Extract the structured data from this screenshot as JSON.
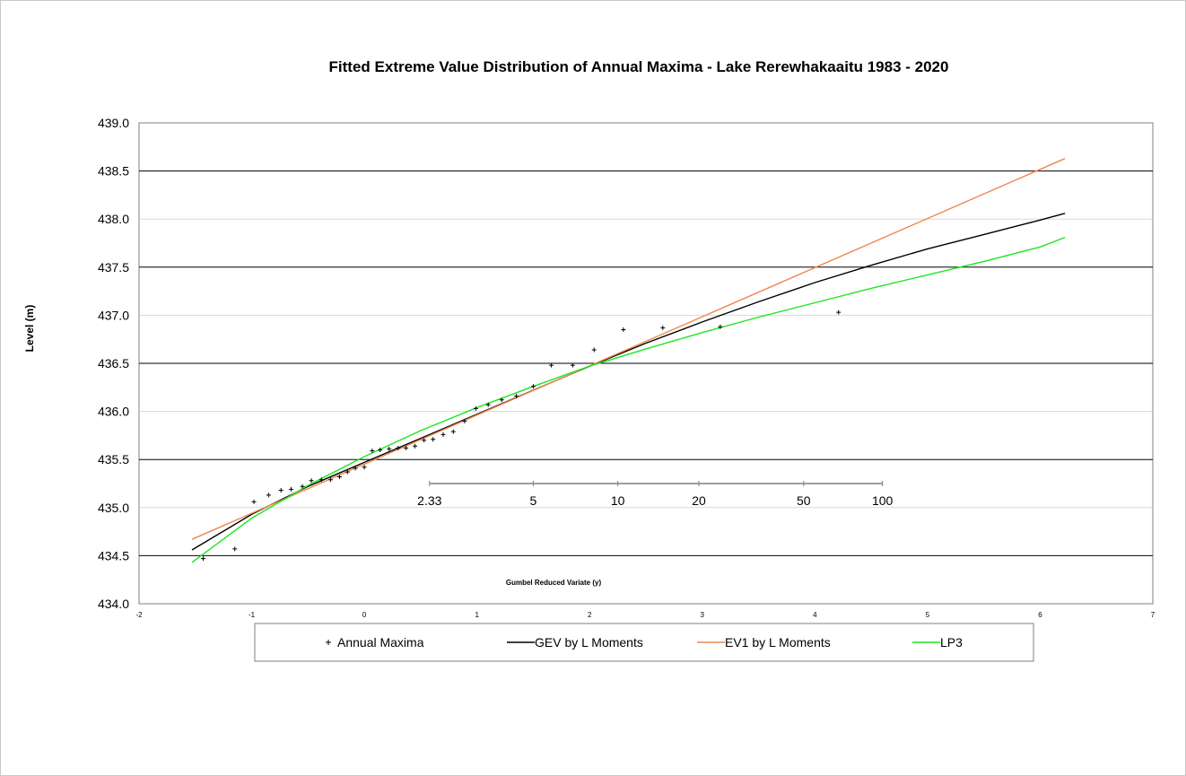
{
  "chart_data": {
    "type": "line",
    "title": "Fitted Extreme Value Distribution of Annual Maxima - Lake Rerewhakaaitu 1983 - 2020",
    "xlabel": "Gumbel Reduced Variate (y)",
    "ylabel": "Level (m)",
    "xlim": [
      -2,
      7
    ],
    "ylim": [
      434.0,
      439.0
    ],
    "x_ticks": [
      -2,
      -1,
      0,
      1,
      2,
      3,
      4,
      5,
      6,
      7
    ],
    "y_ticks": [
      "434.0",
      "434.5",
      "435.0",
      "435.5",
      "436.0",
      "436.5",
      "437.0",
      "437.5",
      "438.0",
      "438.5",
      "439.0"
    ],
    "grid": "horizontal",
    "legend_position": "bottom",
    "return_period_axis": {
      "level": 435.25,
      "labels": [
        "2.33",
        "5",
        "10",
        "20",
        "50",
        "100"
      ],
      "y_values": [
        0.579,
        1.5,
        2.25,
        2.97,
        3.9,
        4.6
      ]
    },
    "series": [
      {
        "name": "Annual Maxima",
        "kind": "points",
        "color": "#000000",
        "x": [
          -1.43,
          -1.15,
          -0.98,
          -0.85,
          -0.74,
          -0.65,
          -0.55,
          -0.47,
          -0.38,
          -0.3,
          -0.22,
          -0.15,
          -0.08,
          0.0,
          0.07,
          0.14,
          0.22,
          0.3,
          0.37,
          0.45,
          0.53,
          0.61,
          0.7,
          0.79,
          0.89,
          0.99,
          1.1,
          1.22,
          1.35,
          1.5,
          1.66,
          1.85,
          2.04,
          2.3,
          2.65,
          3.16,
          4.21
        ],
        "y": [
          434.47,
          434.57,
          435.06,
          435.13,
          435.18,
          435.19,
          435.22,
          435.28,
          435.29,
          435.29,
          435.32,
          435.37,
          435.41,
          435.42,
          435.59,
          435.6,
          435.61,
          435.62,
          435.62,
          435.64,
          435.7,
          435.71,
          435.76,
          435.79,
          435.9,
          436.03,
          436.07,
          436.12,
          436.16,
          436.26,
          436.48,
          436.48,
          436.64,
          436.85,
          436.87,
          436.88,
          437.03
        ]
      },
      {
        "name": "GEV by L Moments",
        "kind": "line",
        "color": "#000000",
        "x": [
          -1.53,
          -1.0,
          -0.5,
          0.0,
          0.5,
          1.0,
          1.5,
          2.0,
          2.5,
          3.0,
          3.5,
          4.0,
          4.5,
          5.0,
          5.5,
          6.0,
          6.22
        ],
        "y": [
          434.56,
          434.93,
          435.22,
          435.47,
          435.72,
          435.97,
          436.22,
          436.47,
          436.71,
          436.93,
          437.14,
          437.34,
          437.52,
          437.69,
          437.84,
          437.99,
          438.06
        ]
      },
      {
        "name": "EV1 by L Moments",
        "kind": "line",
        "color": "#f0874e",
        "x": [
          -1.53,
          6.22
        ],
        "y": [
          434.67,
          438.63
        ]
      },
      {
        "name": "LP3",
        "kind": "line",
        "color": "#1ee61e",
        "x": [
          -1.53,
          -1.0,
          -0.5,
          0.0,
          0.5,
          1.0,
          1.5,
          2.0,
          2.5,
          3.0,
          3.5,
          4.0,
          4.5,
          5.0,
          5.5,
          6.0,
          6.22
        ],
        "y": [
          434.43,
          434.89,
          435.23,
          435.53,
          435.8,
          436.04,
          436.26,
          436.47,
          436.65,
          436.82,
          436.98,
          437.13,
          437.28,
          437.42,
          437.56,
          437.71,
          437.81
        ]
      }
    ]
  }
}
